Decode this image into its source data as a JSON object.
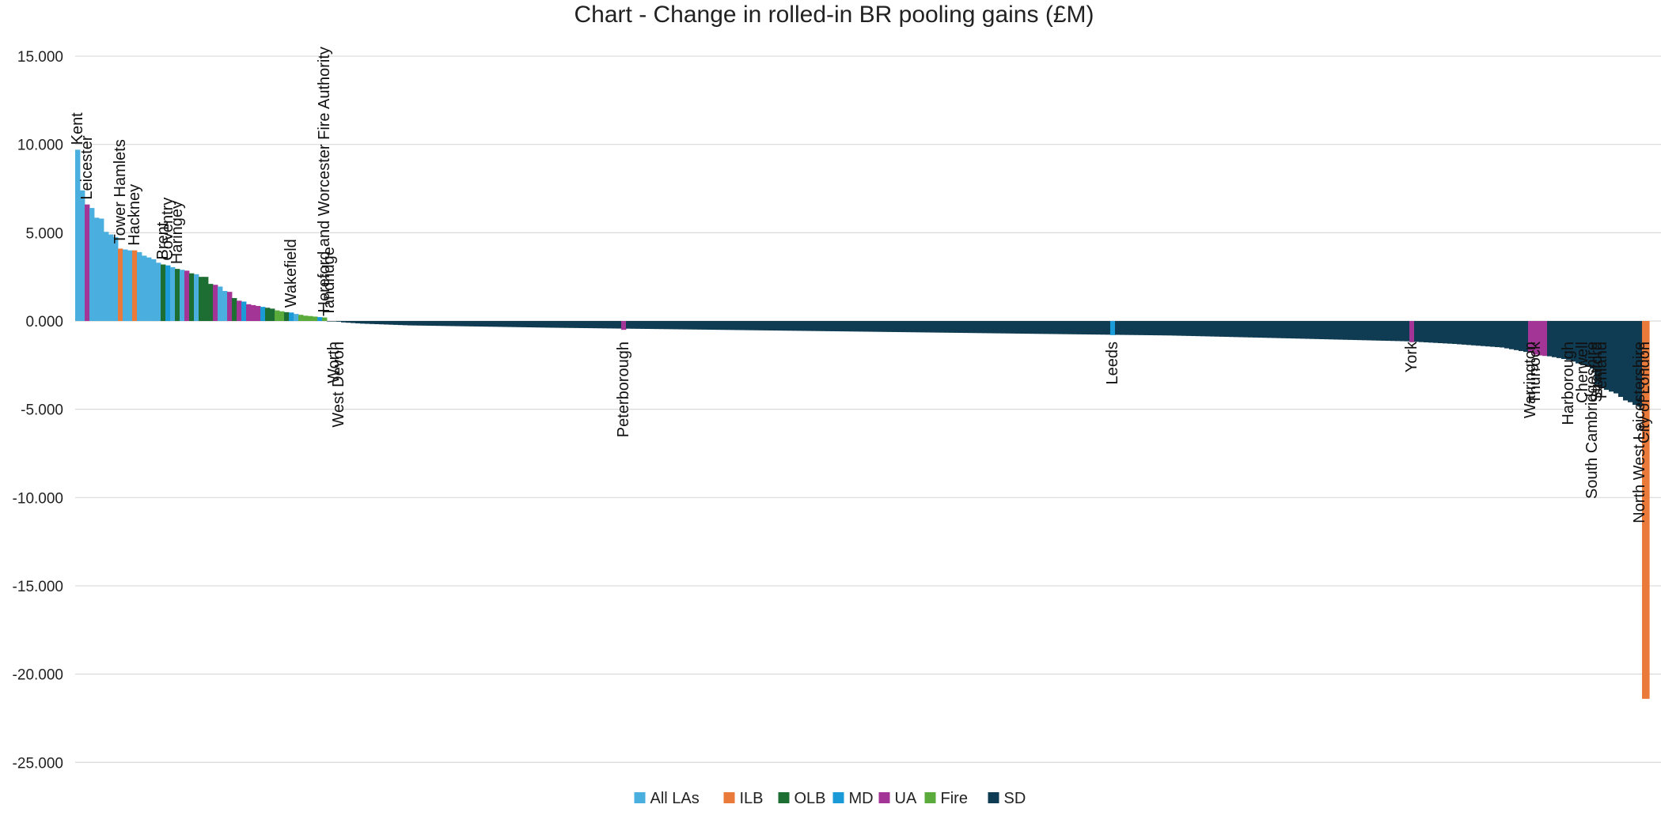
{
  "chart_data": {
    "type": "bar",
    "title": "Chart - Change in rolled-in BR pooling gains (£M)",
    "xlabel": "",
    "ylabel": "",
    "ylim": [
      -26,
      15.5
    ],
    "y_ticks": [
      15,
      10,
      5,
      0,
      -5,
      -10,
      -15,
      -20,
      -25
    ],
    "y_tick_labels": [
      "15.000",
      "10.000",
      "5.000",
      "0.000",
      "-5.000",
      "-10.000",
      "-15.000",
      "-20.000",
      "-25.000"
    ],
    "grid": true,
    "legend_position": "bottom",
    "colors": {
      "All LAs": "#4aaedf",
      "ILB": "#ea7a3a",
      "OLB": "#1d6e33",
      "MD": "#1a9bd7",
      "UA": "#a33596",
      "Fire": "#5aaa3c",
      "SD": "#0f3b53"
    },
    "legend": [
      {
        "name": "All LAs"
      },
      {
        "name": "ILB"
      },
      {
        "name": "OLB"
      },
      {
        "name": "MD"
      },
      {
        "name": "UA"
      },
      {
        "name": "Fire"
      },
      {
        "name": "SD"
      }
    ],
    "total_bars": 334,
    "bars": [
      {
        "i": 0,
        "v": 9.7,
        "g": "All LAs",
        "label": "Kent"
      },
      {
        "i": 1,
        "v": 7.4,
        "g": "All LAs"
      },
      {
        "i": 2,
        "v": 6.6,
        "g": "UA",
        "label": "Leicester"
      },
      {
        "i": 3,
        "v": 6.4,
        "g": "All LAs"
      },
      {
        "i": 4,
        "v": 5.85,
        "g": "All LAs"
      },
      {
        "i": 5,
        "v": 5.8,
        "g": "All LAs"
      },
      {
        "i": 6,
        "v": 5.05,
        "g": "All LAs"
      },
      {
        "i": 7,
        "v": 4.9,
        "g": "All LAs"
      },
      {
        "i": 8,
        "v": 4.75,
        "g": "All LAs"
      },
      {
        "i": 9,
        "v": 4.1,
        "g": "ILB",
        "label": "Tower Hamlets"
      },
      {
        "i": 10,
        "v": 4.05,
        "g": "All LAs"
      },
      {
        "i": 11,
        "v": 4.0,
        "g": "All LAs"
      },
      {
        "i": 12,
        "v": 4.0,
        "g": "ILB",
        "label": "Hackney"
      },
      {
        "i": 13,
        "v": 3.9,
        "g": "All LAs"
      },
      {
        "i": 14,
        "v": 3.7,
        "g": "All LAs"
      },
      {
        "i": 15,
        "v": 3.6,
        "g": "All LAs"
      },
      {
        "i": 16,
        "v": 3.5,
        "g": "All LAs"
      },
      {
        "i": 17,
        "v": 3.3,
        "g": "All LAs"
      },
      {
        "i": 18,
        "v": 3.2,
        "g": "OLB",
        "label": "Brent"
      },
      {
        "i": 19,
        "v": 3.15,
        "g": "MD",
        "label": "Coventry"
      },
      {
        "i": 20,
        "v": 3.05,
        "g": "All LAs"
      },
      {
        "i": 21,
        "v": 2.95,
        "g": "OLB",
        "label": "Haringey"
      },
      {
        "i": 22,
        "v": 2.9,
        "g": "All LAs"
      },
      {
        "i": 23,
        "v": 2.85,
        "g": "UA"
      },
      {
        "i": 24,
        "v": 2.7,
        "g": "OLB"
      },
      {
        "i": 25,
        "v": 2.65,
        "g": "All LAs"
      },
      {
        "i": 26,
        "v": 2.5,
        "g": "OLB"
      },
      {
        "i": 27,
        "v": 2.5,
        "g": "OLB"
      },
      {
        "i": 28,
        "v": 2.1,
        "g": "OLB"
      },
      {
        "i": 29,
        "v": 2.05,
        "g": "UA"
      },
      {
        "i": 30,
        "v": 1.95,
        "g": "All LAs"
      },
      {
        "i": 31,
        "v": 1.7,
        "g": "All LAs"
      },
      {
        "i": 32,
        "v": 1.65,
        "g": "UA"
      },
      {
        "i": 33,
        "v": 1.3,
        "g": "OLB"
      },
      {
        "i": 34,
        "v": 1.15,
        "g": "UA"
      },
      {
        "i": 35,
        "v": 1.1,
        "g": "MD"
      },
      {
        "i": 36,
        "v": 0.95,
        "g": "UA"
      },
      {
        "i": 37,
        "v": 0.9,
        "g": "UA"
      },
      {
        "i": 38,
        "v": 0.85,
        "g": "UA"
      },
      {
        "i": 39,
        "v": 0.8,
        "g": "MD"
      },
      {
        "i": 40,
        "v": 0.75,
        "g": "OLB"
      },
      {
        "i": 41,
        "v": 0.7,
        "g": "OLB"
      },
      {
        "i": 42,
        "v": 0.6,
        "g": "Fire"
      },
      {
        "i": 43,
        "v": 0.55,
        "g": "Fire"
      },
      {
        "i": 44,
        "v": 0.5,
        "g": "OLB"
      },
      {
        "i": 45,
        "v": 0.48,
        "g": "MD",
        "label": "Wakefield"
      },
      {
        "i": 46,
        "v": 0.4,
        "g": "All LAs"
      },
      {
        "i": 47,
        "v": 0.35,
        "g": "Fire"
      },
      {
        "i": 48,
        "v": 0.3,
        "g": "Fire"
      },
      {
        "i": 49,
        "v": 0.28,
        "g": "Fire"
      },
      {
        "i": 50,
        "v": 0.25,
        "g": "Fire"
      },
      {
        "i": 51,
        "v": 0.22,
        "g": "MD"
      },
      {
        "i": 52,
        "v": 0.2,
        "g": "Fire",
        "label": "Hereford and Worcester Fire Authority"
      },
      {
        "i": 53,
        "v": 0.0,
        "g": "SD",
        "label": "Tandridge"
      },
      {
        "i": 54,
        "v": -0.02,
        "g": "SD",
        "label": "Worth"
      },
      {
        "i": 55,
        "v": -0.04,
        "g": "SD",
        "label": "West Devon"
      },
      {
        "i": 115,
        "v": -0.5,
        "g": "UA",
        "label": "Peterborough"
      },
      {
        "i": 218,
        "v": -0.8,
        "g": "MD",
        "label": "Leeds"
      },
      {
        "i": 281,
        "v": -1.2,
        "g": "UA",
        "label": "York"
      },
      {
        "i": 306,
        "v": -1.8,
        "g": "UA",
        "label": "Warrington"
      },
      {
        "i": 307,
        "v": -1.9,
        "g": "UA",
        "label": "Thurrock"
      },
      {
        "i": 308,
        "v": -1.95,
        "g": "UA"
      },
      {
        "i": 309,
        "v": -1.98,
        "g": "UA"
      },
      {
        "i": 310,
        "v": -2.0,
        "g": "SD"
      },
      {
        "i": 311,
        "v": -2.05,
        "g": "SD"
      },
      {
        "i": 312,
        "v": -2.1,
        "g": "SD"
      },
      {
        "i": 313,
        "v": -2.15,
        "g": "SD"
      },
      {
        "i": 314,
        "v": -2.2,
        "g": "SD",
        "label": "Harborough"
      },
      {
        "i": 315,
        "v": -2.3,
        "g": "SD"
      },
      {
        "i": 316,
        "v": -2.4,
        "g": "SD"
      },
      {
        "i": 317,
        "v": -2.5,
        "g": "SD",
        "label": "Cherwell"
      },
      {
        "i": 318,
        "v": -2.6,
        "g": "SD"
      },
      {
        "i": 319,
        "v": -2.7,
        "g": "SD",
        "label": "South Cambridgeshire"
      },
      {
        "i": 320,
        "v": -3.6,
        "g": "SD",
        "label": "Stratford"
      },
      {
        "i": 321,
        "v": -3.8,
        "g": "SD",
        "label": "Fenland"
      },
      {
        "i": 322,
        "v": -3.9,
        "g": "SD"
      },
      {
        "i": 323,
        "v": -4.0,
        "g": "SD"
      },
      {
        "i": 324,
        "v": -4.1,
        "g": "SD"
      },
      {
        "i": 325,
        "v": -4.3,
        "g": "SD"
      },
      {
        "i": 326,
        "v": -4.5,
        "g": "SD"
      },
      {
        "i": 327,
        "v": -4.6,
        "g": "SD"
      },
      {
        "i": 328,
        "v": -4.75,
        "g": "SD"
      },
      {
        "i": 329,
        "v": -4.85,
        "g": "SD",
        "label": "North West Leicestershire"
      },
      {
        "i": 330,
        "v": -21.4,
        "g": "ILB",
        "label": "City of London"
      }
    ],
    "filler": {
      "from": 56,
      "to": 329,
      "group": "SD",
      "anchors": [
        [
          56,
          -0.08
        ],
        [
          60,
          -0.15
        ],
        [
          70,
          -0.25
        ],
        [
          100,
          -0.38
        ],
        [
          150,
          -0.55
        ],
        [
          200,
          -0.72
        ],
        [
          230,
          -0.82
        ],
        [
          250,
          -0.95
        ],
        [
          280,
          -1.15
        ],
        [
          290,
          -1.3
        ],
        [
          300,
          -1.5
        ],
        [
          303,
          -1.65
        ],
        [
          305,
          -1.75
        ],
        [
          306,
          -1.8
        ],
        [
          310,
          -2.0
        ],
        [
          319,
          -2.7
        ],
        [
          320,
          -3.6
        ],
        [
          329,
          -4.85
        ]
      ]
    }
  }
}
